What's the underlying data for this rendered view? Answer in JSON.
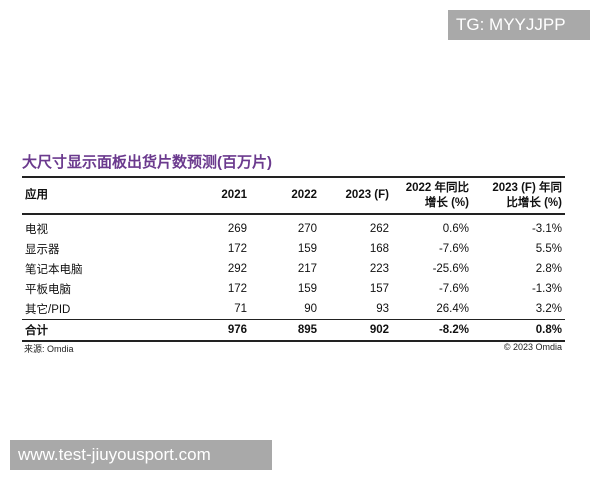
{
  "watermark_top": "TG: MYYJJPP",
  "title": "大尺寸显示面板出货片数预测(百万片)",
  "table": {
    "header": [
      [
        "应用"
      ],
      [
        "2021"
      ],
      [
        "2022"
      ],
      [
        "2023 (F)"
      ],
      [
        "2022 年同比",
        "增长 (%)"
      ],
      [
        "2023 (F) 年同",
        "比增长 (%)"
      ]
    ],
    "rows": [
      [
        "电视",
        "269",
        "270",
        "262",
        "0.6%",
        "-3.1%"
      ],
      [
        "显示器",
        "172",
        "159",
        "168",
        "-7.6%",
        "5.5%"
      ],
      [
        "笔记本电脑",
        "292",
        "217",
        "223",
        "-25.6%",
        "2.8%"
      ],
      [
        "平板电脑",
        "172",
        "159",
        "157",
        "-7.6%",
        "-1.3%"
      ],
      [
        "其它/PID",
        "71",
        "90",
        "93",
        "26.4%",
        "3.2%"
      ]
    ],
    "total": [
      "合计",
      "976",
      "895",
      "902",
      "-8.2%",
      "0.8%"
    ]
  },
  "source": "来源: Omdia",
  "copyright": "© 2023 Omdia",
  "watermark_bottom": "www.test-jiuyousport.com"
}
